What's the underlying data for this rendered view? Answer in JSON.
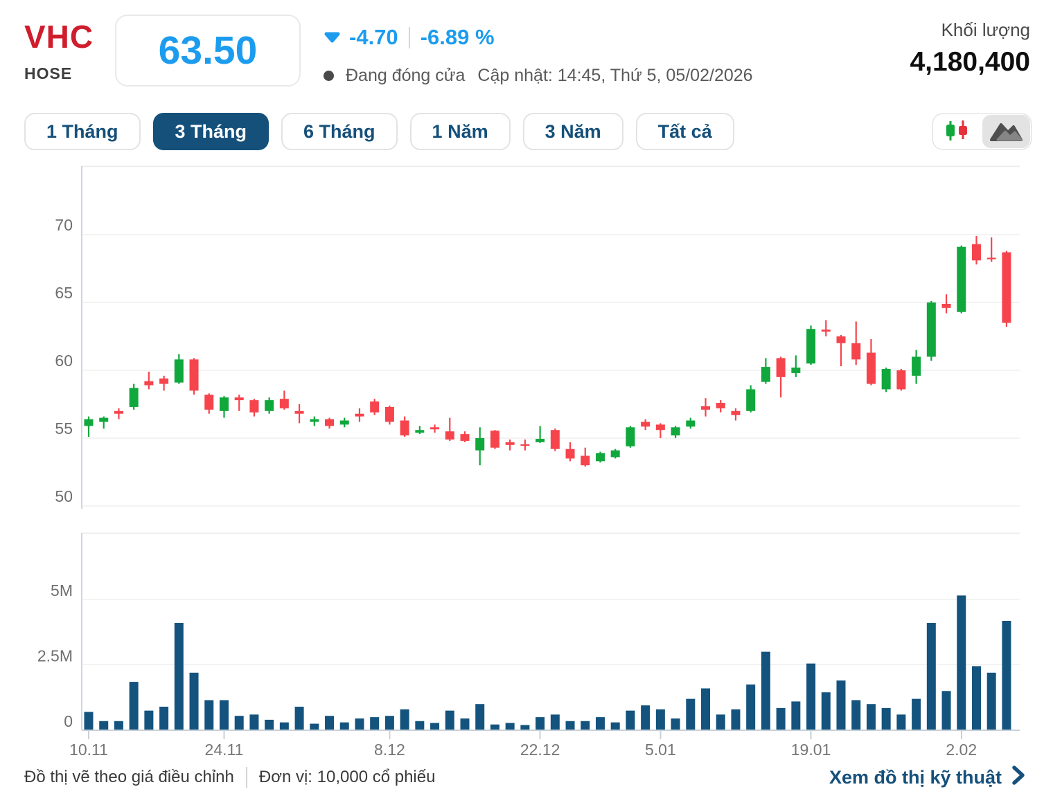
{
  "header": {
    "ticker": "VHC",
    "exchange": "HOSE",
    "price": "63.50",
    "change": "-4.70",
    "change_pct": "-6.89 %",
    "status": "Đang đóng cửa",
    "updated": "Cập nhật: 14:45, Thứ 5, 05/02/2026",
    "volume_label": "Khối lượng",
    "volume_value": "4,180,400"
  },
  "tabs": [
    {
      "label": "1 Tháng",
      "active": false
    },
    {
      "label": "3 Tháng",
      "active": true
    },
    {
      "label": "6 Tháng",
      "active": false
    },
    {
      "label": "1 Năm",
      "active": false
    },
    {
      "label": "3 Năm",
      "active": false
    },
    {
      "label": "Tất cả",
      "active": false
    }
  ],
  "icons": {
    "price_direction": "triangle-down",
    "market_status": "dot",
    "chart_type_left": "candlestick-icon",
    "chart_type_right": "area-chart-icon",
    "footer_link": "chevron-right"
  },
  "footer": {
    "note": "Đồ thị vẽ theo giá điều chỉnh",
    "unit": "Đơn vị: 10,000 cổ phiếu",
    "link_label": "Xem đồ thị kỹ thuật"
  },
  "colors": {
    "up": "#10a73c",
    "down": "#f6444d",
    "volume_bar": "#14537d",
    "accent_blue": "#1c9cee",
    "navy": "#15507b",
    "ticker_red": "#d01d2c",
    "gridline": "#e7e7e7",
    "axis_line": "#ccd7e0",
    "axis_text": "#6e6e6e"
  },
  "chart_data": {
    "type": "candlestick",
    "title": "",
    "xlabel": "",
    "ylabel": "",
    "legend": false,
    "grid": true,
    "price_axis": {
      "ticks": [
        70,
        65,
        60,
        55,
        50
      ],
      "range": [
        49.3,
        75.1
      ]
    },
    "volume_axis": {
      "ticks": [
        {
          "label": "5M",
          "value": 5
        },
        {
          "label": "2.5M",
          "value": 2.5
        },
        {
          "label": "0",
          "value": 0
        }
      ],
      "range_m": [
        0,
        7.5
      ]
    },
    "x_ticks": [
      {
        "index": 0,
        "label": "10.11"
      },
      {
        "index": 9,
        "label": "24.11"
      },
      {
        "index": 20,
        "label": "8.12"
      },
      {
        "index": 30,
        "label": "22.12"
      },
      {
        "index": 38,
        "label": "5.01"
      },
      {
        "index": 48,
        "label": "19.01"
      },
      {
        "index": 58,
        "label": "2.02"
      }
    ],
    "candles_ohlc": [
      [
        55.9,
        56.6,
        55.1,
        56.4
      ],
      [
        56.2,
        56.6,
        55.7,
        56.5
      ],
      [
        57.0,
        57.2,
        56.4,
        56.8
      ],
      [
        57.3,
        59.0,
        57.1,
        58.7
      ],
      [
        59.2,
        59.9,
        58.6,
        58.9
      ],
      [
        59.4,
        59.6,
        58.5,
        59.0
      ],
      [
        59.1,
        61.2,
        59.0,
        60.8
      ],
      [
        60.8,
        60.9,
        58.2,
        58.5
      ],
      [
        58.2,
        58.3,
        56.8,
        57.1
      ],
      [
        57.0,
        58.1,
        56.5,
        58.0
      ],
      [
        58.0,
        58.2,
        57.0,
        57.8
      ],
      [
        57.8,
        57.9,
        56.6,
        56.9
      ],
      [
        57.0,
        58.0,
        56.8,
        57.8
      ],
      [
        57.9,
        58.5,
        57.1,
        57.2
      ],
      [
        57.0,
        57.5,
        56.1,
        56.8
      ],
      [
        56.2,
        56.6,
        55.9,
        56.4
      ],
      [
        56.4,
        56.5,
        55.7,
        55.9
      ],
      [
        56.0,
        56.5,
        55.8,
        56.3
      ],
      [
        56.8,
        57.2,
        56.2,
        56.6
      ],
      [
        57.7,
        57.9,
        56.7,
        56.9
      ],
      [
        57.3,
        57.4,
        56.0,
        56.2
      ],
      [
        56.3,
        56.6,
        55.1,
        55.2
      ],
      [
        55.4,
        55.9,
        55.3,
        55.6
      ],
      [
        55.8,
        56.0,
        55.4,
        55.65
      ],
      [
        55.5,
        56.5,
        54.8,
        54.9
      ],
      [
        55.3,
        55.5,
        54.7,
        54.8
      ],
      [
        54.1,
        55.8,
        53.0,
        55.0
      ],
      [
        55.55,
        55.6,
        54.2,
        54.3
      ],
      [
        54.7,
        54.9,
        54.1,
        54.5
      ],
      [
        54.55,
        54.9,
        54.1,
        54.45
      ],
      [
        54.7,
        55.9,
        54.65,
        54.95
      ],
      [
        55.6,
        55.7,
        54.05,
        54.2
      ],
      [
        54.2,
        54.7,
        53.3,
        53.5
      ],
      [
        53.7,
        54.3,
        52.9,
        53.0
      ],
      [
        53.3,
        54.0,
        53.2,
        53.9
      ],
      [
        53.6,
        54.2,
        53.5,
        54.1
      ],
      [
        54.4,
        55.9,
        54.3,
        55.8
      ],
      [
        56.2,
        56.4,
        55.6,
        55.85
      ],
      [
        56.0,
        56.1,
        55.0,
        55.6
      ],
      [
        55.2,
        55.9,
        55.0,
        55.8
      ],
      [
        55.85,
        56.5,
        55.7,
        56.3
      ],
      [
        57.35,
        57.95,
        56.6,
        57.1
      ],
      [
        57.6,
        57.8,
        56.9,
        57.2
      ],
      [
        57.0,
        57.2,
        56.3,
        56.7
      ],
      [
        57.0,
        58.9,
        56.9,
        58.6
      ],
      [
        59.15,
        60.9,
        59.0,
        60.25
      ],
      [
        60.9,
        61.0,
        58.0,
        59.5
      ],
      [
        59.8,
        61.1,
        59.5,
        60.2
      ],
      [
        60.5,
        63.3,
        60.4,
        63.05
      ],
      [
        63.0,
        63.7,
        62.5,
        62.85
      ],
      [
        62.5,
        62.6,
        60.3,
        62.0
      ],
      [
        62.0,
        63.6,
        60.4,
        60.8
      ],
      [
        61.3,
        62.3,
        58.9,
        59.0
      ],
      [
        58.6,
        60.2,
        58.4,
        60.1
      ],
      [
        60.0,
        60.1,
        58.5,
        58.6
      ],
      [
        59.6,
        61.5,
        59.0,
        61.0
      ],
      [
        61.0,
        65.1,
        60.7,
        65.0
      ],
      [
        64.9,
        65.6,
        64.2,
        64.6
      ],
      [
        64.3,
        69.2,
        64.2,
        69.1
      ],
      [
        69.3,
        69.9,
        67.8,
        68.1
      ],
      [
        68.3,
        69.8,
        68.0,
        68.2
      ],
      [
        68.7,
        68.8,
        63.2,
        63.5
      ]
    ],
    "volumes_m": [
      0.7,
      0.35,
      0.35,
      1.85,
      0.75,
      0.9,
      4.1,
      2.2,
      1.15,
      1.15,
      0.55,
      0.6,
      0.4,
      0.3,
      0.9,
      0.25,
      0.55,
      0.3,
      0.45,
      0.5,
      0.55,
      0.8,
      0.35,
      0.28,
      0.75,
      0.45,
      1.0,
      0.22,
      0.28,
      0.2,
      0.5,
      0.6,
      0.35,
      0.35,
      0.5,
      0.3,
      0.75,
      0.95,
      0.8,
      0.45,
      1.2,
      1.6,
      0.6,
      0.8,
      1.75,
      3.0,
      0.85,
      1.1,
      2.55,
      1.45,
      1.9,
      1.15,
      1.0,
      0.85,
      0.6,
      1.2,
      4.1,
      1.5,
      5.15,
      2.45,
      2.2,
      4.18
    ]
  }
}
